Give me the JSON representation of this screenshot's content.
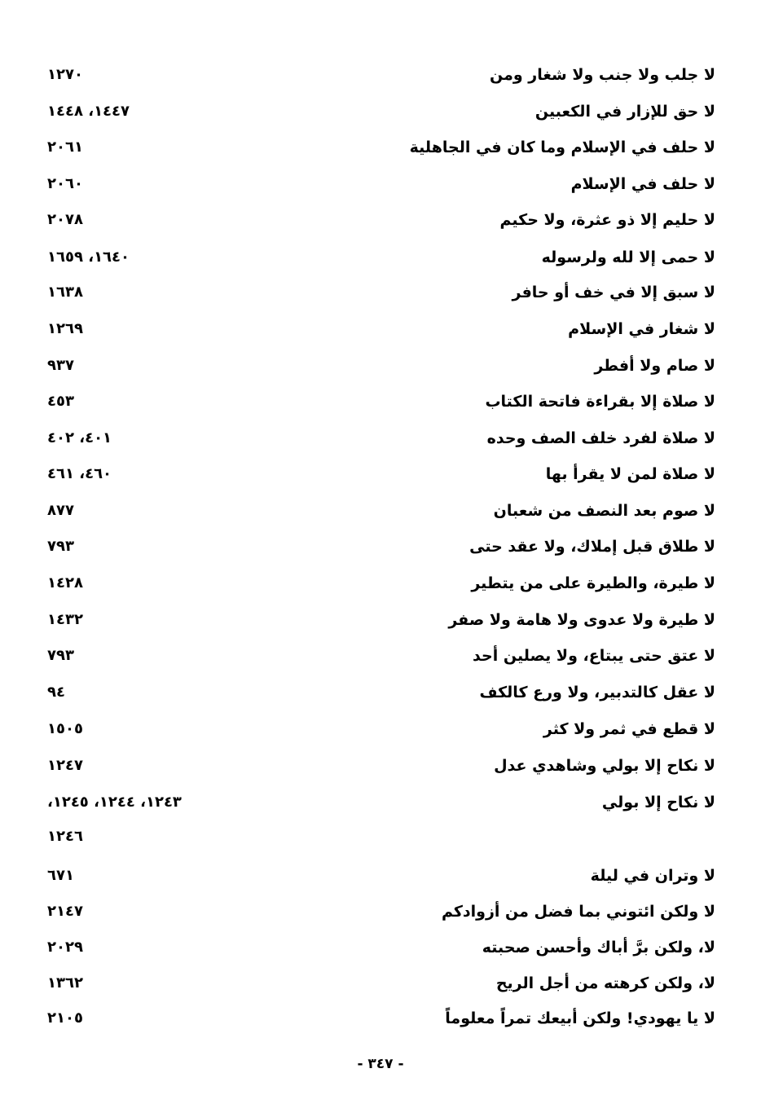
{
  "entries": [
    {
      "phrase": "لا جلب ولا جنب ولا شغار ومن",
      "refs": "١٢٧٠"
    },
    {
      "phrase": "لا حق للإزار في الكعبين",
      "refs": "١٤٤٧، ١٤٤٨"
    },
    {
      "phrase": "لا حلف في الإسلام وما كان في الجاهلية",
      "refs": "٢٠٦١"
    },
    {
      "phrase": "لا حلف في الإسلام",
      "refs": "٢٠٦٠"
    },
    {
      "phrase": "لا حليم إلا ذو عثرة، ولا حكيم",
      "refs": "٢٠٧٨"
    },
    {
      "phrase": "لا حمى إلا لله ولرسوله",
      "refs": "١٦٤٠، ١٦٥٩"
    },
    {
      "phrase": "لا سبق إلا في خف أو حافر",
      "refs": "١٦٣٨"
    },
    {
      "phrase": "لا شغار في الإسلام",
      "refs": "١٢٦٩"
    },
    {
      "phrase": "لا صام ولا أفطر",
      "refs": "٩٣٧"
    },
    {
      "phrase": "لا صلاة إلا بقراءة فاتحة الكتاب",
      "refs": "٤٥٣"
    },
    {
      "phrase": "لا صلاة لفرد خلف الصف وحده",
      "refs": "٤٠١، ٤٠٢"
    },
    {
      "phrase": "لا صلاة لمن لا يقرأ بها",
      "refs": "٤٦٠، ٤٦١"
    },
    {
      "phrase": "لا صوم بعد النصف من شعبان",
      "refs": "٨٧٧"
    },
    {
      "phrase": "لا طلاق قبل إملاك، ولا عقد حتى",
      "refs": "٧٩٣"
    },
    {
      "phrase": "لا طيرة، والطيرة على من يتطير",
      "refs": "١٤٢٨"
    },
    {
      "phrase": "لا طيرة ولا عدوى ولا هامة ولا صفر",
      "refs": "١٤٣٢"
    },
    {
      "phrase": "لا عتق حتى يبتاع، ولا يصلين أحد",
      "refs": "٧٩٣"
    },
    {
      "phrase": "لا عقل كالتدبير، ولا ورع كالكف",
      "refs": "٩٤"
    },
    {
      "phrase": "لا قطع في ثمر ولا كثر",
      "refs": "١٥٠٥"
    },
    {
      "phrase": "لا نكاح إلا بولي وشاهدي عدل",
      "refs": "١٢٤٧"
    },
    {
      "phrase": "لا نكاح إلا بولي",
      "refs": "١٢٤٣، ١٢٤٤، ١٢٤٥،"
    },
    {
      "phrase": "",
      "refs": "١٢٤٦"
    },
    {
      "phrase": "لا وتران في ليلة",
      "refs": "٦٧١"
    },
    {
      "phrase": "لا ولكن ائتوني بما فضل من أزوادكم",
      "refs": "٢١٤٧"
    },
    {
      "phrase": "لا، ولكن برَّ أباك وأحسن صحبته",
      "refs": "٢٠٢٩"
    },
    {
      "phrase": "لا، ولكن كرهته من أجل الريح",
      "refs": "١٣٦٢"
    },
    {
      "phrase": "لا يا يهودي! ولكن أبيعك تمراً معلوماً",
      "refs": "٢١٠٥"
    }
  ],
  "page_number": "- ٣٤٧ -"
}
